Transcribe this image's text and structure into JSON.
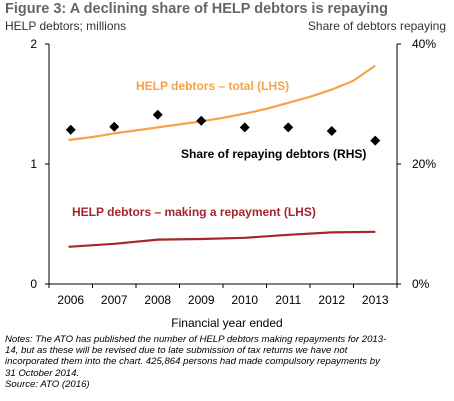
{
  "figure": {
    "title": "Figure 3: A declining share of HELP debtors is repaying",
    "left_axis_caption": "HELP debtors; millions",
    "right_axis_caption": "Share of debtors repaying",
    "xlabel": "Financial year ended",
    "notes_line1": "Notes: The ATO has published the number of HELP debtors making repayments for 2013-",
    "notes_line2": "14, but as these will be revised due to late submission of tax returns we have not",
    "notes_line3": "incorporated them into the chart. 425,864 persons had made compulsory repayments by",
    "notes_line4": "31 October 2014.",
    "source": "Source: ATO (2016)"
  },
  "chart_data": {
    "type": "line",
    "categories": [
      "2006",
      "2007",
      "2008",
      "2009",
      "2010",
      "2011",
      "2012",
      "2013"
    ],
    "y_left": {
      "ticks": [
        "0",
        "1",
        "2"
      ],
      "ylim": [
        0,
        2
      ]
    },
    "y_right": {
      "ticks": [
        "0%",
        "20%",
        "40%"
      ],
      "ylim": [
        0,
        40
      ]
    },
    "grid": false,
    "series": [
      {
        "name": "HELP debtors – total (LHS)",
        "axis": "left",
        "style": "line",
        "color": "#f5a346",
        "x": [
          2005.95,
          2006.5,
          2007,
          2007.5,
          2008,
          2008.5,
          2009,
          2009.5,
          2010,
          2010.5,
          2011,
          2011.5,
          2012,
          2012.5,
          2013
        ],
        "values": [
          1.2,
          1.225,
          1.255,
          1.28,
          1.305,
          1.33,
          1.355,
          1.385,
          1.42,
          1.46,
          1.51,
          1.56,
          1.62,
          1.695,
          1.82
        ]
      },
      {
        "name": "Share of repaying debtors (RHS)",
        "axis": "right",
        "style": "markers",
        "color": "#000000",
        "x": [
          2006,
          2007,
          2008,
          2009,
          2010,
          2011,
          2012,
          2013
        ],
        "values": [
          25.7,
          26.2,
          28.2,
          27.2,
          26.1,
          26.1,
          25.5,
          23.9
        ]
      },
      {
        "name": "HELP debtors – making a repayment (LHS)",
        "axis": "left",
        "style": "line",
        "color": "#a6262b",
        "x": [
          2005.95,
          2007,
          2008,
          2009,
          2010,
          2011,
          2012,
          2013
        ],
        "values": [
          0.31,
          0.335,
          0.37,
          0.375,
          0.385,
          0.41,
          0.43,
          0.435
        ]
      }
    ]
  }
}
